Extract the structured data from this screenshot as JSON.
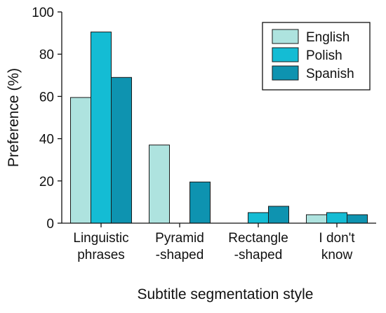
{
  "chart_data": {
    "type": "bar",
    "title": "",
    "xlabel": "Subtitle segmentation style",
    "ylabel": "Preference (%)",
    "ylim": [
      0,
      100
    ],
    "yticks": [
      0,
      20,
      40,
      60,
      80,
      100
    ],
    "grid": false,
    "legend_position": "top-right",
    "categories": [
      [
        "Linguistic",
        "phrases"
      ],
      [
        "Pyramid",
        "-shaped"
      ],
      [
        "Rectangle",
        "-shaped"
      ],
      [
        "I don't",
        "know"
      ]
    ],
    "series": [
      {
        "name": "English",
        "color": "#aee3df",
        "values": [
          59.5,
          37,
          0,
          4
        ]
      },
      {
        "name": "Polish",
        "color": "#14bcd4",
        "values": [
          90.5,
          0,
          5,
          5
        ]
      },
      {
        "name": "Spanish",
        "color": "#0e93b0",
        "values": [
          69,
          19.5,
          8,
          4
        ]
      }
    ]
  }
}
